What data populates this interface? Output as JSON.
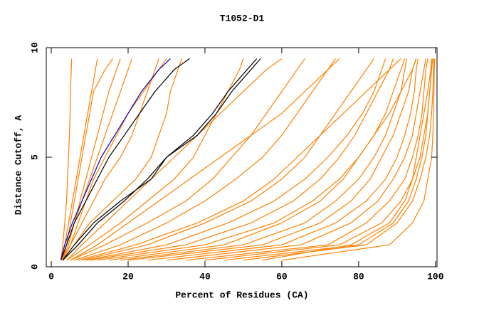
{
  "chart_data": {
    "type": "line",
    "title": "T1052-D1",
    "x_label": "Percent of Residues (CA)",
    "y_label": "Distance Cutoff, A",
    "xlim": [
      -1.3,
      100.4
    ],
    "ylim": [
      0,
      10
    ],
    "xticks": [
      0,
      20,
      40,
      60,
      80,
      100
    ],
    "yticks": [
      0,
      5,
      10
    ],
    "series": [
      {
        "color": "#ff8000",
        "x": [
          2.5,
          3,
          3.5,
          4,
          4.2,
          4.5,
          4.7,
          4.9,
          5,
          5.2,
          5.3
        ],
        "values": [
          0.3,
          1,
          2,
          3,
          4,
          5,
          6,
          7,
          8,
          9,
          9.5
        ]
      },
      {
        "color": "#ff8000",
        "x": [
          2.5,
          3.5,
          4.5,
          5.5,
          6.5,
          7.5,
          8.5,
          9.5,
          10.5,
          11.5,
          12
        ],
        "values": [
          0.3,
          1,
          2,
          3,
          4,
          5,
          6,
          7,
          8,
          9,
          9.5
        ]
      },
      {
        "color": "#ff8000",
        "x": [
          3,
          4,
          6,
          8,
          10,
          12,
          14,
          16,
          18,
          20,
          21
        ],
        "values": [
          0.3,
          1,
          2,
          3,
          4,
          5,
          6,
          7,
          8,
          9,
          9.5
        ]
      },
      {
        "color": "#ff8000",
        "x": [
          3,
          5,
          8,
          11,
          14,
          18,
          21,
          23,
          25,
          27,
          28
        ],
        "values": [
          0.3,
          1,
          2,
          3,
          4,
          5,
          6,
          7,
          8,
          9,
          9.5
        ]
      },
      {
        "color": "#ff8000",
        "x": [
          3,
          6,
          10,
          16,
          22,
          26,
          28,
          30,
          31,
          33,
          34
        ],
        "values": [
          0.3,
          1,
          2,
          3,
          4,
          5,
          6,
          7,
          8,
          9,
          9.5
        ]
      },
      {
        "color": "#ff8000",
        "x": [
          4,
          10,
          18,
          25,
          32,
          37,
          40,
          43,
          46,
          49,
          50
        ],
        "values": [
          0.3,
          1,
          2,
          3,
          4,
          5,
          6,
          7,
          8,
          9,
          9.5
        ]
      },
      {
        "color": "#ff8000",
        "x": [
          5,
          14,
          25,
          35,
          42,
          47,
          52,
          56,
          60,
          64,
          66
        ],
        "values": [
          0.3,
          1,
          2,
          3,
          4,
          5,
          6,
          7,
          8,
          9,
          9.5
        ]
      },
      {
        "color": "#ff8000",
        "x": [
          6,
          18,
          30,
          40,
          48,
          55,
          60,
          64,
          68,
          72,
          74
        ],
        "values": [
          0.3,
          1,
          2,
          3,
          4,
          5,
          6,
          7,
          8,
          9,
          9.5
        ]
      },
      {
        "color": "#ff8000",
        "x": [
          8,
          25,
          40,
          52,
          60,
          66,
          70,
          74,
          78,
          82,
          84
        ],
        "values": [
          0.3,
          1,
          2,
          3,
          4,
          5,
          6,
          7,
          8,
          9,
          9.5
        ]
      },
      {
        "color": "#ff8000",
        "x": [
          10,
          35,
          52,
          63,
          70,
          75,
          79,
          82,
          85,
          88,
          89
        ],
        "values": [
          0.3,
          1,
          2,
          3,
          4,
          5,
          6,
          7,
          8,
          9,
          9.5
        ]
      },
      {
        "color": "#ff8000",
        "x": [
          15,
          45,
          60,
          70,
          76,
          80,
          84,
          87,
          89,
          91,
          92
        ],
        "values": [
          0.3,
          1,
          2,
          3,
          4,
          5,
          6,
          7,
          8,
          9,
          9.5
        ]
      },
      {
        "color": "#ff8000",
        "x": [
          20,
          55,
          70,
          78,
          83,
          86,
          89,
          91,
          93,
          94,
          95
        ],
        "values": [
          0.3,
          1,
          2,
          3,
          4,
          5,
          6,
          7,
          8,
          9,
          9.5
        ]
      },
      {
        "color": "#ff8000",
        "x": [
          30,
          65,
          78,
          85,
          89,
          92,
          94,
          95,
          96,
          97,
          97.5
        ],
        "values": [
          0.3,
          1,
          2,
          3,
          4,
          5,
          6,
          7,
          8,
          9,
          9.5
        ]
      },
      {
        "color": "#ff8000",
        "x": [
          40,
          75,
          86,
          91,
          94,
          96,
          97,
          98,
          98.5,
          99,
          99.3
        ],
        "values": [
          0.3,
          1,
          2,
          3,
          4,
          5,
          6,
          7,
          8,
          9,
          9.5
        ]
      },
      {
        "color": "#ff8000",
        "x": [
          50,
          82,
          90,
          94,
          96,
          97.5,
          98.5,
          99,
          99.3,
          99.5,
          99.6
        ],
        "values": [
          0.3,
          1,
          2,
          3,
          4,
          5,
          6,
          7,
          8,
          9,
          9.5
        ]
      },
      {
        "color": "#ff8000",
        "x": [
          60,
          88,
          94,
          97,
          98,
          99,
          99.3,
          99.5,
          99.6,
          99.7,
          99.8
        ],
        "values": [
          0.3,
          1,
          2,
          3,
          4,
          5,
          6,
          7,
          8,
          9,
          9.5
        ]
      },
      {
        "color": "#ff8000",
        "x": [
          35,
          72,
          82,
          88,
          92,
          94,
          95.5,
          96.5,
          97,
          97.5,
          98
        ],
        "values": [
          0.3,
          1,
          2,
          3,
          4,
          5,
          6,
          7,
          8,
          9,
          9.5
        ]
      },
      {
        "color": "#ff8000",
        "x": [
          25,
          60,
          74,
          82,
          87,
          90,
          92,
          93.5,
          94.5,
          95,
          95.5
        ],
        "values": [
          0.3,
          1,
          2,
          3,
          4,
          5,
          6,
          7,
          8,
          9,
          9.5
        ]
      },
      {
        "color": "#ff8000",
        "x": [
          12,
          40,
          58,
          68,
          75,
          80,
          84,
          88,
          91,
          94,
          95
        ],
        "values": [
          0.3,
          1,
          2,
          3,
          4,
          5,
          6,
          7,
          8,
          9,
          9.5
        ]
      },
      {
        "color": "#ff8000",
        "x": [
          7,
          22,
          38,
          50,
          58,
          64,
          70,
          76,
          82,
          88,
          91
        ],
        "values": [
          0.3,
          1,
          2,
          3,
          4,
          5,
          6,
          7,
          8,
          9,
          9.5
        ]
      },
      {
        "color": "#ff8000",
        "x": [
          5,
          12,
          20,
          28,
          36,
          44,
          52,
          60,
          66,
          72,
          75
        ],
        "values": [
          0.3,
          1,
          2,
          3,
          4,
          5,
          6,
          7,
          8,
          9,
          9.5
        ]
      },
      {
        "color": "#ff8000",
        "x": [
          4,
          8,
          14,
          20,
          26,
          32,
          38,
          44,
          50,
          56,
          60
        ],
        "values": [
          0.3,
          1,
          2,
          3,
          4,
          5,
          6,
          7,
          8,
          9,
          9.5
        ]
      },
      {
        "color": "#ff8000",
        "x": [
          3,
          5,
          7,
          9,
          11,
          14,
          17,
          20,
          24,
          28,
          30
        ],
        "values": [
          0.3,
          1,
          2,
          3,
          4,
          5,
          6,
          7,
          8,
          9,
          9.5
        ]
      },
      {
        "color": "#ff8000",
        "x": [
          2.8,
          4,
          5,
          6,
          7,
          8,
          9,
          10,
          11,
          14,
          16
        ],
        "values": [
          0.3,
          1,
          2,
          3,
          4,
          5,
          6,
          7,
          8,
          9,
          9.5
        ]
      },
      {
        "color": "#ff8000",
        "x": [
          3,
          4.5,
          6,
          7.5,
          9,
          10.5,
          12,
          13.5,
          15,
          17,
          18
        ],
        "values": [
          0.3,
          1,
          2,
          3,
          4,
          5,
          6,
          7,
          8,
          9,
          9.5
        ]
      },
      {
        "color": "#ff8000",
        "x": [
          18,
          50,
          66,
          74,
          80,
          84,
          87,
          89,
          91,
          92,
          92.5
        ],
        "values": [
          0.3,
          1,
          2,
          3,
          4,
          5,
          6,
          7,
          8,
          9,
          9.5
        ]
      },
      {
        "color": "#ff8000",
        "x": [
          45,
          80,
          89,
          93,
          95,
          96.5,
          97.5,
          98,
          98.5,
          99,
          99.2
        ],
        "values": [
          0.3,
          1,
          2,
          3,
          4,
          5,
          6,
          7,
          8,
          9,
          9.5
        ]
      },
      {
        "color": "#ff8000",
        "x": [
          55,
          78,
          88,
          92,
          94,
          95,
          96,
          97,
          98,
          98.8,
          99
        ],
        "values": [
          0.3,
          1,
          2,
          3,
          4,
          5,
          6,
          7,
          8,
          9,
          9.5
        ]
      },
      {
        "color": "#ff8000",
        "x": [
          9,
          30,
          46,
          58,
          66,
          72,
          77,
          81,
          84,
          86,
          87
        ],
        "values": [
          0.3,
          1,
          2,
          3,
          4,
          5,
          6,
          7,
          8,
          9,
          9.5
        ]
      },
      {
        "color": "#000000",
        "x": [
          2.5,
          4,
          6,
          9,
          12,
          15,
          19,
          23,
          27,
          32,
          36
        ],
        "values": [
          0.3,
          1,
          2,
          3,
          4,
          5,
          6,
          7,
          8,
          9,
          9.5
        ]
      },
      {
        "color": "#000000",
        "x": [
          3,
          6,
          11,
          18,
          26,
          30,
          37,
          42,
          46,
          51,
          53.5
        ],
        "values": [
          0.3,
          1,
          2,
          3,
          4,
          5,
          6,
          7,
          8,
          9,
          9.5
        ]
      },
      {
        "color": "#000000",
        "x": [
          3,
          7,
          12,
          19,
          25,
          30,
          38,
          43,
          47,
          52,
          54.5
        ],
        "values": [
          0.3,
          1,
          2,
          3,
          4,
          5,
          6,
          7,
          8,
          9,
          9.5
        ]
      },
      {
        "color": "#0000cc",
        "x": [
          2.5,
          3.5,
          5.5,
          8,
          10.5,
          13,
          16.5,
          20,
          23.5,
          28,
          31
        ],
        "values": [
          0.3,
          1,
          2,
          3,
          4,
          5,
          6,
          7,
          8,
          9,
          9.5
        ]
      }
    ]
  }
}
